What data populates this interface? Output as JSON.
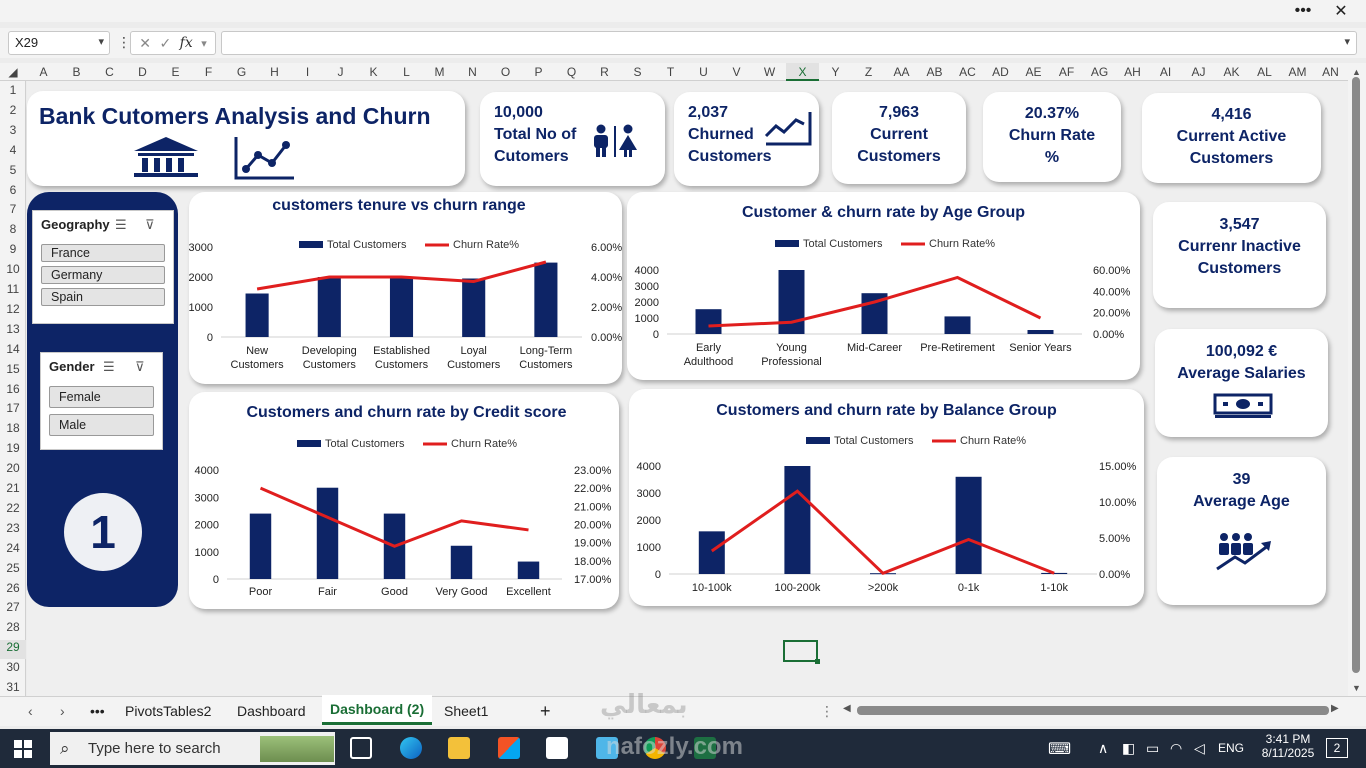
{
  "window": {
    "more_label": "•••",
    "close_label": "✕"
  },
  "formula_bar": {
    "name_box": "X29",
    "fx_label": "fx",
    "cancel_glyph": "✕",
    "enter_glyph": "✓",
    "value": ""
  },
  "columns": [
    "A",
    "B",
    "C",
    "D",
    "E",
    "F",
    "G",
    "H",
    "I",
    "J",
    "K",
    "L",
    "M",
    "N",
    "O",
    "P",
    "Q",
    "R",
    "S",
    "T",
    "U",
    "V",
    "W",
    "X",
    "Y",
    "Z",
    "AA",
    "AB",
    "AC",
    "AD",
    "AE",
    "AF",
    "AG",
    "AH",
    "AI",
    "AJ",
    "AK",
    "AL",
    "AM",
    "AN"
  ],
  "selected_column": "X",
  "rows": [
    "1",
    "2",
    "3",
    "4",
    "5",
    "6",
    "7",
    "8",
    "9",
    "10",
    "11",
    "12",
    "13",
    "14",
    "15",
    "16",
    "17",
    "18",
    "19",
    "20",
    "21",
    "22",
    "23",
    "24",
    "25",
    "26",
    "27",
    "28",
    "29",
    "30",
    "31"
  ],
  "selected_row": "29",
  "dashboard": {
    "title": "Bank Cutomers Analysis and Churn",
    "kpis": {
      "total": {
        "value": "10,000",
        "label1": "Total No of",
        "label2": "Cutomers"
      },
      "churned": {
        "value": "2,037",
        "label1": "Churned",
        "label2": "Customers"
      },
      "current": {
        "value": "7,963",
        "label1": "Current",
        "label2": "Customers"
      },
      "churn_rate": {
        "value": "20.37%",
        "label1": "Churn Rate",
        "label2": "%"
      },
      "active": {
        "value": "4,416",
        "label1": "Current Active",
        "label2": "Customers"
      },
      "inactive": {
        "value": "3,547",
        "label1": "Currenr Inactive",
        "label2": "Customers"
      },
      "salary": {
        "value": "100,092 €",
        "label1": "Average Salaries"
      },
      "age": {
        "value": "39",
        "label1": "Average Age"
      }
    },
    "slicers": {
      "geography": {
        "title": "Geography",
        "items": [
          "France",
          "Germany",
          "Spain"
        ]
      },
      "gender": {
        "title": "Gender",
        "items": [
          "Female",
          "Male"
        ]
      }
    },
    "page_number": "1",
    "legend": {
      "bar": "Total Customers",
      "line": "Churn Rate%"
    },
    "colors": {
      "navy": "#0d2466",
      "red": "#e01e1e"
    }
  },
  "chart_data": [
    {
      "type": "bar",
      "title": "customers tenure vs churn range",
      "categories": [
        "New Customers",
        "Developing Customers",
        "Established Customers",
        "Loyal Customers",
        "Long-Term Customers"
      ],
      "series": [
        {
          "name": "Total Customers",
          "values": [
            1450,
            2000,
            2000,
            1950,
            2480
          ]
        },
        {
          "name": "Churn Rate%",
          "values": [
            3.2,
            4.0,
            4.0,
            3.7,
            5.0
          ]
        }
      ],
      "yticks": [
        "0",
        "1000",
        "2000",
        "3000"
      ],
      "y2ticks": [
        "0.00%",
        "2.00%",
        "4.00%",
        "6.00%"
      ],
      "ylim": [
        0,
        3000
      ],
      "y2lim": [
        0,
        6
      ]
    },
    {
      "type": "bar",
      "title": "Customer & churn rate by Age Group",
      "categories": [
        "Early Adulthood",
        "Young Professional",
        "Mid-Career",
        "Pre-Retirement",
        "Senior Years"
      ],
      "series": [
        {
          "name": "Total Customers",
          "values": [
            1550,
            4000,
            2550,
            1100,
            250
          ]
        },
        {
          "name": "Churn Rate%",
          "values": [
            7.5,
            11,
            30,
            53,
            15
          ]
        }
      ],
      "yticks": [
        "0",
        "1000",
        "2000",
        "3000",
        "4000"
      ],
      "y2ticks": [
        "0.00%",
        "20.00%",
        "40.00%",
        "60.00%"
      ],
      "ylim": [
        0,
        4000
      ],
      "y2lim": [
        0,
        60
      ]
    },
    {
      "type": "bar",
      "title": "Customers and churn rate by Credit score",
      "categories": [
        "Poor",
        "Fair",
        "Good",
        "Very Good",
        "Excellent"
      ],
      "series": [
        {
          "name": "Total Customers",
          "values": [
            2400,
            3350,
            2400,
            1220,
            640
          ]
        },
        {
          "name": "Churn Rate%",
          "values": [
            22.0,
            20.4,
            18.8,
            20.2,
            19.7
          ]
        }
      ],
      "yticks": [
        "0",
        "1000",
        "2000",
        "3000",
        "4000"
      ],
      "y2ticks": [
        "17.00%",
        "18.00%",
        "19.00%",
        "20.00%",
        "21.00%",
        "22.00%",
        "23.00%"
      ],
      "ylim": [
        0,
        4000
      ],
      "y2lim": [
        17,
        23
      ]
    },
    {
      "type": "bar",
      "title": "Customers and churn rate by Balance Group",
      "categories": [
        "10-100k",
        "100-200k",
        ">200k",
        "0-1k",
        "1-10k"
      ],
      "series": [
        {
          "name": "Total Customers",
          "values": [
            1580,
            4000,
            30,
            3600,
            40
          ]
        },
        {
          "name": "Churn Rate%",
          "values": [
            3.2,
            11.5,
            0.1,
            4.8,
            0.1
          ]
        }
      ],
      "yticks": [
        "0",
        "1000",
        "2000",
        "3000",
        "4000"
      ],
      "y2ticks": [
        "0.00%",
        "5.00%",
        "10.00%",
        "15.00%"
      ],
      "ylim": [
        0,
        4000
      ],
      "y2lim": [
        0,
        15
      ]
    }
  ],
  "sheet_tabs": {
    "tabs": [
      "PivotsTables2",
      "Dashboard",
      "Dashboard (2)",
      "Sheet1"
    ],
    "active": "Dashboard (2)",
    "more": "•••",
    "add": "+"
  },
  "taskbar": {
    "search_placeholder": "Type here to search",
    "language": "ENG",
    "time": "3:41 PM",
    "date": "8/11/2025",
    "notifications": "2"
  },
  "watermark": "nafozly.com"
}
